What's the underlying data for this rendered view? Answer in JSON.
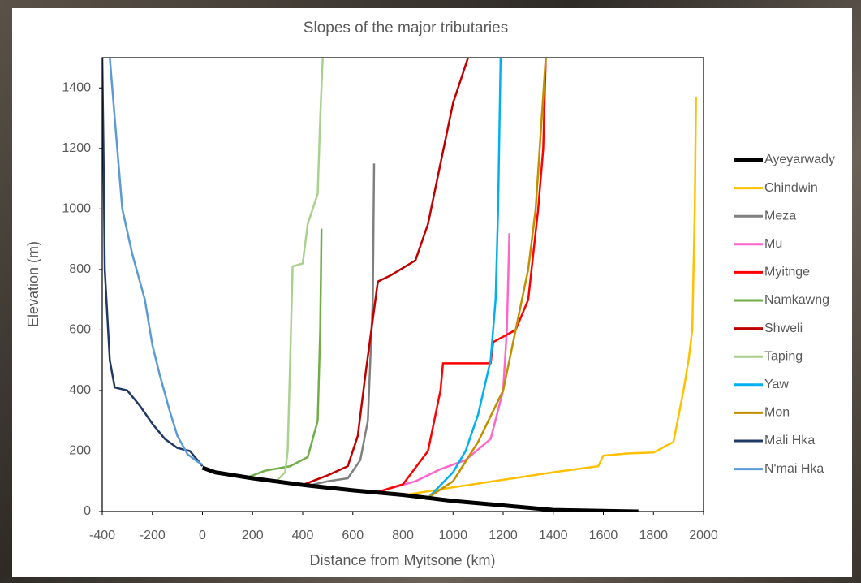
{
  "chart_data": {
    "type": "line",
    "title": "Slopes of the major tributaries",
    "x_label": "Distance from Myitsone (km)",
    "y_label": "Elevation (m)",
    "xlim": [
      -400,
      2000
    ],
    "xticks": [
      -400,
      -200,
      0,
      200,
      400,
      600,
      800,
      1000,
      1200,
      1400,
      1600,
      1800,
      2000
    ],
    "ylim": [
      0,
      1500
    ],
    "yticks": [
      0,
      200,
      400,
      600,
      800,
      1000,
      1200,
      1400
    ],
    "grid": false,
    "legend": "right",
    "series": [
      {
        "name": "Ayeyarwady",
        "color": "#000000",
        "x": [
          0,
          50,
          200,
          400,
          600,
          800,
          1000,
          1200,
          1400,
          1600,
          1740
        ],
        "values": [
          145,
          130,
          110,
          88,
          70,
          55,
          35,
          20,
          5,
          2,
          0
        ]
      },
      {
        "name": "Chindwin",
        "color": "#ffc000",
        "x": [
          810,
          1000,
          1200,
          1400,
          1580,
          1600,
          1700,
          1800,
          1880,
          1920,
          1940,
          1955,
          1965,
          1970
        ],
        "values": [
          55,
          80,
          105,
          130,
          150,
          185,
          192,
          195,
          230,
          400,
          500,
          600,
          1000,
          1370
        ]
      },
      {
        "name": "Meza",
        "color": "#7f7f7f",
        "x": [
          420,
          500,
          580,
          630,
          660,
          680,
          685
        ],
        "values": [
          85,
          100,
          110,
          170,
          300,
          700,
          1150
        ]
      },
      {
        "name": "Mu",
        "color": "#ff66cc",
        "x": [
          700,
          850,
          950,
          1050,
          1150,
          1200,
          1215,
          1225
        ],
        "values": [
          65,
          100,
          140,
          170,
          240,
          400,
          600,
          920
        ]
      },
      {
        "name": "Myitnge",
        "color": "#ff0000",
        "x": [
          700,
          800,
          900,
          950,
          960,
          1150,
          1160,
          1250,
          1300,
          1340,
          1360,
          1370
        ],
        "values": [
          65,
          90,
          200,
          400,
          490,
          490,
          560,
          600,
          700,
          1000,
          1200,
          1500
        ]
      },
      {
        "name": "Namkawng",
        "color": "#70ad47",
        "x": [
          170,
          250,
          350,
          420,
          460,
          470,
          475
        ],
        "values": [
          110,
          135,
          150,
          180,
          300,
          600,
          935
        ]
      },
      {
        "name": "Shweli",
        "color": "#c00000",
        "x": [
          400,
          500,
          580,
          620,
          650,
          700,
          750,
          850,
          900,
          950,
          1000,
          1060
        ],
        "values": [
          88,
          120,
          150,
          250,
          450,
          760,
          780,
          830,
          950,
          1150,
          1350,
          1500
        ]
      },
      {
        "name": "Taping",
        "color": "#a9d18e",
        "x": [
          300,
          330,
          340,
          350,
          360,
          400,
          420,
          460,
          470,
          480
        ],
        "values": [
          105,
          130,
          200,
          500,
          810,
          820,
          950,
          1050,
          1300,
          1500
        ]
      },
      {
        "name": "Yaw",
        "color": "#00b0f0",
        "x": [
          900,
          1000,
          1050,
          1100,
          1150,
          1170,
          1180,
          1190
        ],
        "values": [
          45,
          130,
          200,
          320,
          500,
          700,
          1000,
          1500
        ]
      },
      {
        "name": "Mon",
        "color": "#bf9000",
        "x": [
          890,
          1000,
          1100,
          1200,
          1300,
          1330,
          1350,
          1370
        ],
        "values": [
          40,
          100,
          230,
          400,
          800,
          1000,
          1250,
          1500
        ]
      },
      {
        "name": "Mali Hka",
        "color": "#203864",
        "x": [
          -400,
          -395,
          -390,
          -370,
          -350,
          -300,
          -250,
          -200,
          -150,
          -100,
          -50,
          -20,
          0
        ],
        "values": [
          1500,
          1200,
          800,
          500,
          410,
          400,
          350,
          290,
          240,
          210,
          200,
          170,
          150
        ]
      },
      {
        "name": "N'mai Hka",
        "color": "#5b9bd5",
        "x": [
          -370,
          -350,
          -320,
          -280,
          -230,
          -200,
          -170,
          -130,
          -100,
          -60,
          -20,
          0
        ],
        "values": [
          1500,
          1300,
          1000,
          850,
          700,
          550,
          450,
          330,
          250,
          190,
          165,
          155
        ]
      }
    ]
  }
}
